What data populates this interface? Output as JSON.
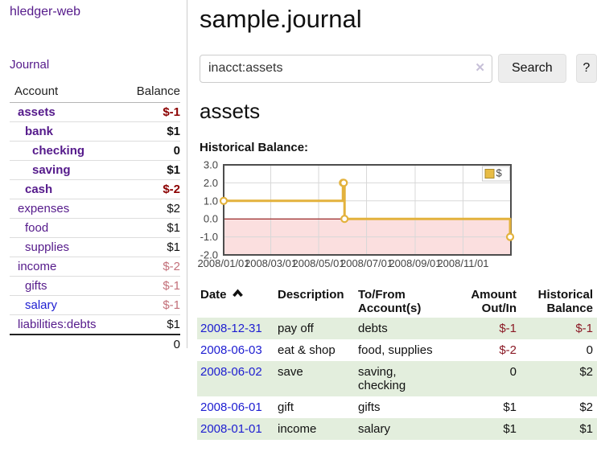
{
  "sidebar": {
    "app_title": "hledger-web",
    "nav_journal": "Journal",
    "accounts_table": {
      "headers": [
        "Account",
        "Balance"
      ],
      "rows": [
        {
          "account": "assets",
          "indent": 0,
          "bold": true,
          "balance": "$-1",
          "balance_class": "b-negbold"
        },
        {
          "account": "bank",
          "indent": 1,
          "bold": true,
          "balance": "$1",
          "balance_class": "b-bold"
        },
        {
          "account": "checking",
          "indent": 2,
          "bold": true,
          "balance": "0",
          "balance_class": "b-bold"
        },
        {
          "account": "saving",
          "indent": 2,
          "bold": true,
          "balance": "$1",
          "balance_class": "b-bold"
        },
        {
          "account": "cash",
          "indent": 1,
          "bold": true,
          "balance": "$-2",
          "balance_class": "b-negbold"
        },
        {
          "account": "expenses",
          "indent": 0,
          "bold": false,
          "balance": "$2",
          "balance_class": ""
        },
        {
          "account": "food",
          "indent": 1,
          "bold": false,
          "balance": "$1",
          "balance_class": ""
        },
        {
          "account": "supplies",
          "indent": 1,
          "bold": false,
          "balance": "$1",
          "balance_class": ""
        },
        {
          "account": "income",
          "indent": 0,
          "bold": false,
          "balance": "$-2",
          "balance_class": "b-negmuted"
        },
        {
          "account": "gifts",
          "indent": 1,
          "bold": false,
          "balance": "$-1",
          "balance_class": "b-negmuted"
        },
        {
          "account": "salary",
          "indent": 1,
          "bold": false,
          "balance": "$-1",
          "balance_class": "b-negmuted",
          "link_color": "blue"
        },
        {
          "account": "liabilities:debts",
          "indent": 0,
          "bold": false,
          "balance": "$1",
          "balance_class": ""
        }
      ],
      "total": "0"
    }
  },
  "main": {
    "title": "sample.journal",
    "search": {
      "value": "inacct:assets",
      "clear_icon": "✕",
      "button_label": "Search",
      "help_label": "?"
    },
    "account_heading": "assets",
    "chart_label": "Historical Balance:",
    "register_table": {
      "headers": [
        "Date",
        "Description",
        "To/From Account(s)",
        "Amount Out/In",
        "Historical Balance"
      ],
      "rows": [
        {
          "date": "2008-12-31",
          "description": "pay off",
          "accounts": "debts",
          "amount": "$-1",
          "amount_neg": true,
          "balance": "$-1",
          "balance_neg": true,
          "shaded": true
        },
        {
          "date": "2008-06-03",
          "description": "eat & shop",
          "accounts": "food, supplies",
          "amount": "$-2",
          "amount_neg": true,
          "balance": "0",
          "balance_neg": false,
          "shaded": false
        },
        {
          "date": "2008-06-02",
          "description": "save",
          "accounts": "saving, checking",
          "amount": "0",
          "amount_neg": false,
          "balance": "$2",
          "balance_neg": false,
          "shaded": true
        },
        {
          "date": "2008-06-01",
          "description": "gift",
          "accounts": "gifts",
          "amount": "$1",
          "amount_neg": false,
          "balance": "$2",
          "balance_neg": false,
          "shaded": false
        },
        {
          "date": "2008-01-01",
          "description": "income",
          "accounts": "salary",
          "amount": "$1",
          "amount_neg": false,
          "balance": "$1",
          "balance_neg": false,
          "shaded": true
        }
      ]
    }
  },
  "chart_data": {
    "type": "line",
    "style": "step",
    "title": "Historical Balance:",
    "series": [
      {
        "name": "$",
        "color": "#e3b23d",
        "points": [
          [
            "2008-01-01",
            1
          ],
          [
            "2008-06-01",
            2
          ],
          [
            "2008-06-02",
            2
          ],
          [
            "2008-06-03",
            0
          ],
          [
            "2008-12-31",
            -1
          ]
        ]
      }
    ],
    "x_range": [
      "2008-01-01",
      "2009-01-01"
    ],
    "ylim": [
      -2,
      3
    ],
    "y_ticks": [
      3,
      2,
      1,
      0,
      -1,
      -2
    ],
    "x_ticks": [
      {
        "date": "2008-01-01",
        "label": "2008/01/01"
      },
      {
        "date": "2008-03-01",
        "label": "2008/03/01"
      },
      {
        "date": "2008-05-01",
        "label": "2008/05/01"
      },
      {
        "date": "2008-07-01",
        "label": "2008/07/01"
      },
      {
        "date": "2008-09-01",
        "label": "2008/09/01"
      },
      {
        "date": "2008-11-01",
        "label": "2008/11/01"
      }
    ],
    "grid": true,
    "legend_position": "top-right",
    "colors": {
      "negative_region": "#fbdfdf",
      "zero_line": "#8b0000",
      "grid_line": "#d8d8d8",
      "plot_border": "#4d4d4d",
      "marker_fill": "#ffffff"
    }
  }
}
